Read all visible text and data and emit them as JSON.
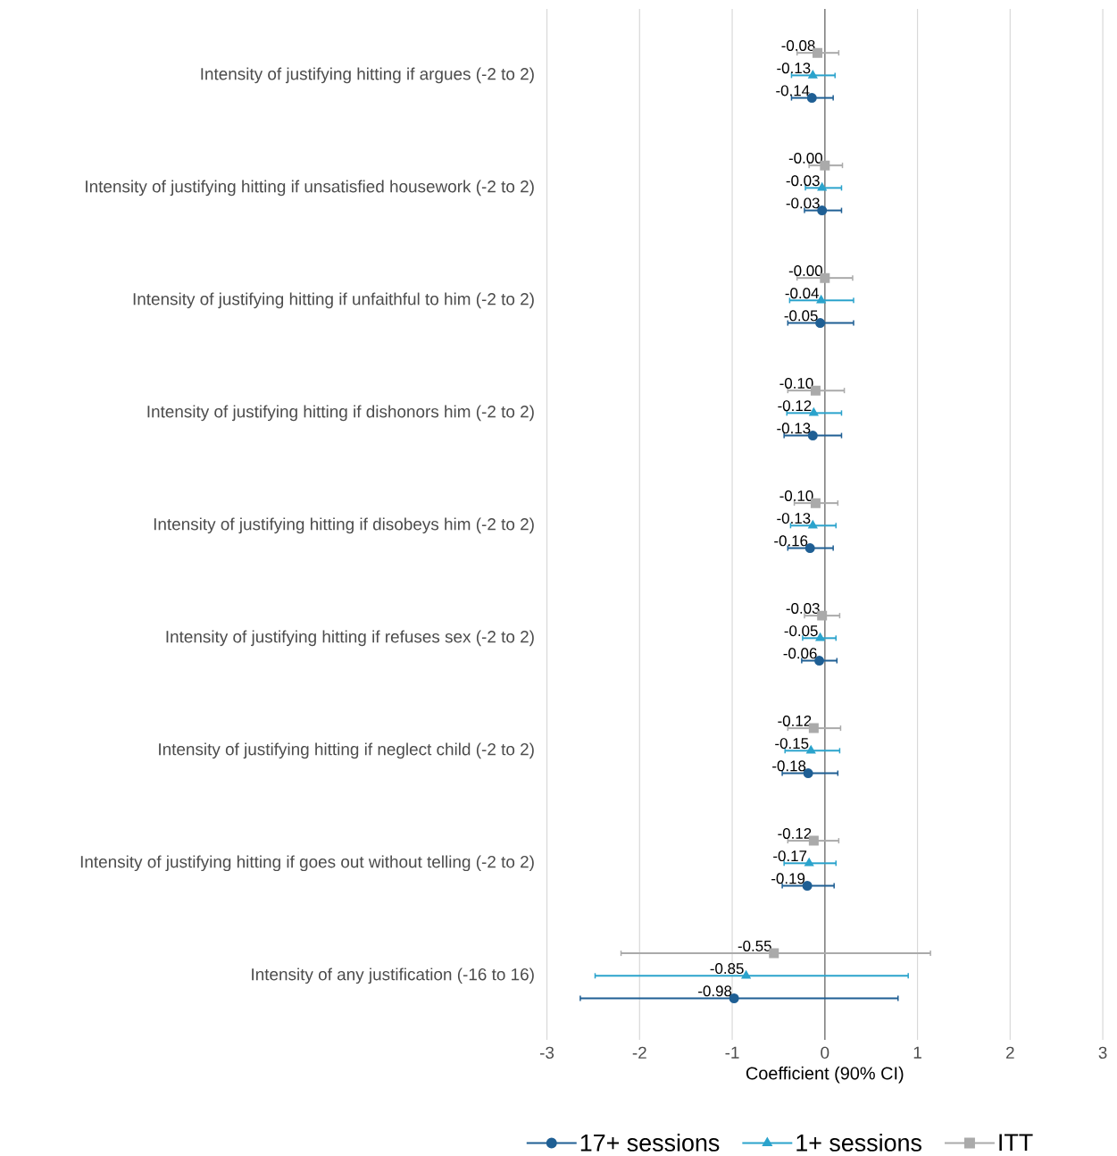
{
  "chart_data": {
    "type": "scatter",
    "orientation": "horizontal",
    "xlabel": "Coefficient (90% CI)",
    "categories": [
      "Intensity of justifying hitting if argues (-2 to 2)",
      "Intensity of justifying hitting if unsatisfied housework (-2 to 2)",
      "Intensity of justifying hitting if unfaithful to him (-2 to 2)",
      "Intensity of justifying hitting if dishonors him (-2 to 2)",
      "Intensity of justifying hitting if disobeys him (-2 to 2)",
      "Intensity of justifying hitting if refuses sex (-2 to 2)",
      "Intensity of justifying hitting if neglect child (-2 to 2)",
      "Intensity of justifying hitting if goes out without telling (-2 to 2)",
      "Intensity of any justification (-16 to 16)"
    ],
    "series": [
      {
        "name": "17+ sessions",
        "color": "#1f5f94",
        "marker": "circle",
        "values": [
          -0.14,
          -0.03,
          -0.05,
          -0.13,
          -0.16,
          -0.06,
          -0.18,
          -0.19,
          -0.98
        ],
        "value_labels": [
          "-0.14",
          "-0.03",
          "-0.05",
          "-0.13",
          "-0.16",
          "-0.06",
          "-0.18",
          "-0.19",
          "-0.98"
        ],
        "errors": [
          [
            -0.36,
            0.09
          ],
          [
            -0.22,
            0.18
          ],
          [
            -0.4,
            0.31
          ],
          [
            -0.44,
            0.18
          ],
          [
            -0.4,
            0.09
          ],
          [
            -0.25,
            0.13
          ],
          [
            -0.46,
            0.14
          ],
          [
            -0.46,
            0.1
          ],
          [
            -2.64,
            0.79
          ]
        ]
      },
      {
        "name": "1+ sessions",
        "color": "#2ba3cc",
        "marker": "triangle",
        "values": [
          -0.13,
          -0.03,
          -0.04,
          -0.12,
          -0.13,
          -0.05,
          -0.15,
          -0.17,
          -0.85
        ],
        "value_labels": [
          "-0.13",
          "-0.03",
          "-0.04",
          "-0.12",
          "-0.13",
          "-0.05",
          "-0.15",
          "-0.17",
          "-0.85"
        ],
        "errors": [
          [
            -0.36,
            0.11
          ],
          [
            -0.21,
            0.18
          ],
          [
            -0.38,
            0.31
          ],
          [
            -0.41,
            0.18
          ],
          [
            -0.37,
            0.12
          ],
          [
            -0.24,
            0.12
          ],
          [
            -0.43,
            0.16
          ],
          [
            -0.44,
            0.12
          ],
          [
            -2.48,
            0.9
          ]
        ]
      },
      {
        "name": "ITT",
        "color": "#aaaaaa",
        "marker": "square",
        "values": [
          -0.08,
          0,
          0,
          -0.1,
          -0.1,
          -0.03,
          -0.12,
          -0.12,
          -0.55
        ],
        "value_labels": [
          "-0.08",
          "-0.00",
          "-0.00",
          "-0.10",
          "-0.10",
          "-0.03",
          "-0.12",
          "-0.12",
          "-0.55"
        ],
        "errors": [
          [
            -0.3,
            0.15
          ],
          [
            -0.17,
            0.19
          ],
          [
            -0.3,
            0.3
          ],
          [
            -0.4,
            0.21
          ],
          [
            -0.33,
            0.14
          ],
          [
            -0.22,
            0.16
          ],
          [
            -0.4,
            0.17
          ],
          [
            -0.4,
            0.15
          ],
          [
            -2.2,
            1.14
          ]
        ]
      }
    ],
    "xlim": [
      -3,
      3
    ],
    "xticks": [
      -3,
      -2,
      -1,
      0,
      1,
      2,
      3
    ],
    "grid": "x",
    "legend": "bottom",
    "ref_lines": [
      {
        "axis": "x",
        "value": 0,
        "color": "#7f7f7f"
      }
    ]
  }
}
